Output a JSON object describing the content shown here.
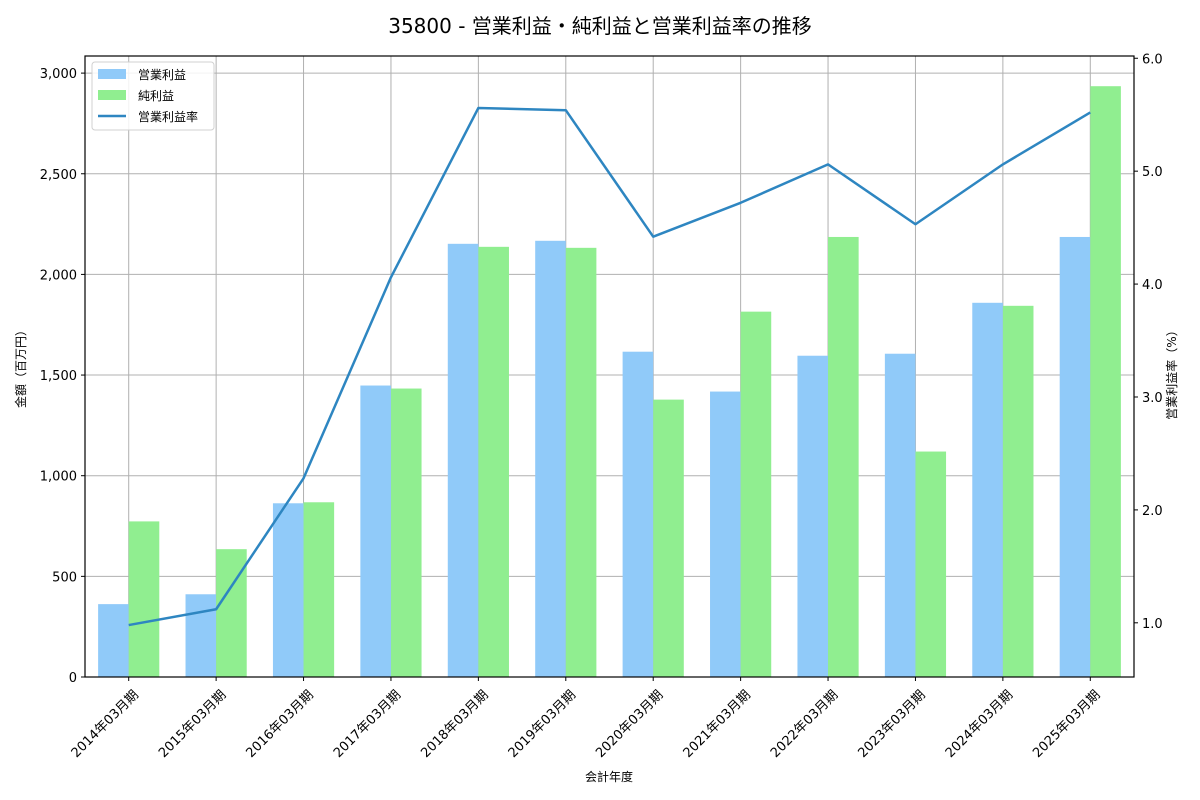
{
  "chart_data": {
    "type": "bar+line",
    "title": "35800 - 営業利益・純利益と営業利益率の推移",
    "xlabel": "会計年度",
    "ylabel": "金額（百万円）",
    "ylabel_right": "営業利益率（%）",
    "categories": [
      "2014年03月期",
      "2015年03月期",
      "2016年03月期",
      "2017年03月期",
      "2018年03月期",
      "2019年03月期",
      "2020年03月期",
      "2021年03月期",
      "2022年03月期",
      "2023年03月期",
      "2024年03月期",
      "2025年03月期"
    ],
    "series": [
      {
        "name": "営業利益",
        "type": "bar",
        "axis": "left",
        "color": "#90caf9",
        "values": [
          362,
          411,
          863,
          1448,
          2152,
          2167,
          1616,
          1418,
          1596,
          1606,
          1859,
          2186
        ]
      },
      {
        "name": "純利益",
        "type": "bar",
        "axis": "left",
        "color": "#90ee90",
        "values": [
          773,
          635,
          868,
          1433,
          2137,
          2132,
          1378,
          1815,
          2186,
          1120,
          1844,
          2935
        ]
      },
      {
        "name": "営業利益率",
        "type": "line",
        "axis": "right",
        "color": "#2e86c1",
        "values": [
          0.98,
          1.12,
          2.28,
          4.06,
          5.56,
          5.54,
          4.42,
          4.72,
          5.06,
          4.53,
          5.06,
          5.52
        ]
      }
    ],
    "ylim": [
      0,
      3085
    ],
    "ylim_right": [
      0.52,
      6.02
    ],
    "yticks": [
      0,
      500,
      1000,
      1500,
      2000,
      2500,
      3000
    ],
    "ytick_labels": [
      "0",
      "500",
      "1,000",
      "1,500",
      "2,000",
      "2,500",
      "3,000"
    ],
    "yticks_right": [
      1.0,
      2.0,
      3.0,
      4.0,
      5.0,
      6.0
    ],
    "ytick_labels_right": [
      "1.0",
      "2.0",
      "3.0",
      "4.0",
      "5.0",
      "6.0"
    ],
    "grid": true,
    "legend_position": "upper left"
  }
}
